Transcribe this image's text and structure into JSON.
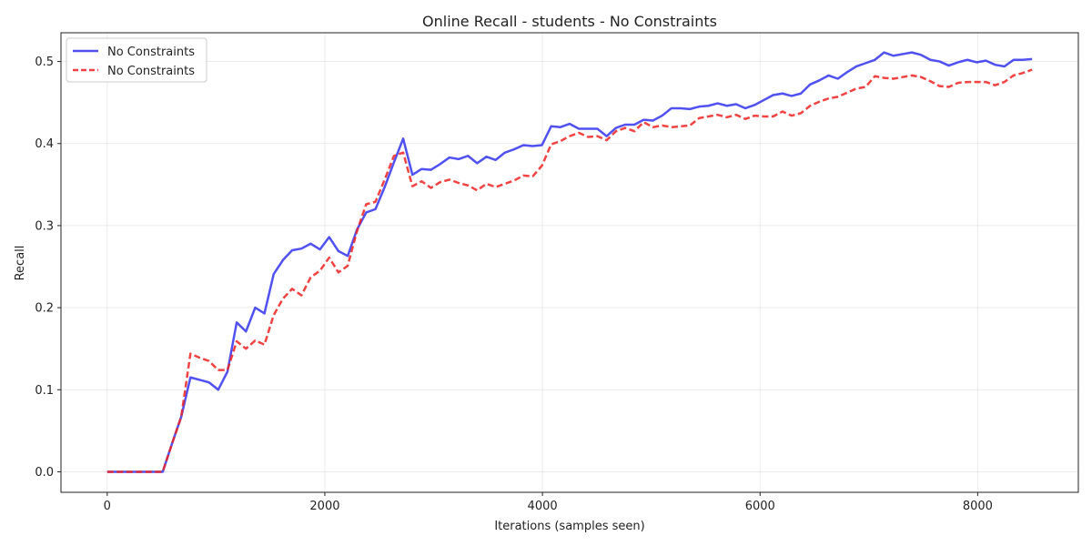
{
  "chart_data": {
    "type": "line",
    "title": "Online Recall - students - No Constraints",
    "xlabel": "Iterations (samples seen)",
    "ylabel": "Recall",
    "xlim": [
      -425,
      8925
    ],
    "ylim": [
      -0.025,
      0.535
    ],
    "xticks": [
      0,
      2000,
      4000,
      6000,
      8000
    ],
    "xtick_labels": [
      "0",
      "2000",
      "4000",
      "6000",
      "8000"
    ],
    "yticks": [
      0.0,
      0.1,
      0.2,
      0.3,
      0.4,
      0.5
    ],
    "ytick_labels": [
      "0.0",
      "0.1",
      "0.2",
      "0.3",
      "0.4",
      "0.5"
    ],
    "grid": true,
    "legend_position": "top-left",
    "series": [
      {
        "name": "No Constraints",
        "color": "#3333ee",
        "style": "solid",
        "points": [
          [
            0,
            0.0
          ],
          [
            85,
            0.0
          ],
          [
            170,
            0.0
          ],
          [
            255,
            0.0
          ],
          [
            340,
            0.0
          ],
          [
            425,
            0.0
          ],
          [
            510,
            0.0
          ],
          [
            595,
            0.034
          ],
          [
            680,
            0.067
          ],
          [
            765,
            0.115
          ],
          [
            850,
            0.112
          ],
          [
            935,
            0.109
          ],
          [
            1020,
            0.1
          ],
          [
            1105,
            0.122
          ],
          [
            1190,
            0.182
          ],
          [
            1275,
            0.171
          ],
          [
            1360,
            0.2
          ],
          [
            1445,
            0.193
          ],
          [
            1530,
            0.241
          ],
          [
            1615,
            0.258
          ],
          [
            1700,
            0.27
          ],
          [
            1785,
            0.272
          ],
          [
            1870,
            0.278
          ],
          [
            1955,
            0.271
          ],
          [
            2040,
            0.286
          ],
          [
            2125,
            0.269
          ],
          [
            2210,
            0.263
          ],
          [
            2295,
            0.295
          ],
          [
            2380,
            0.316
          ],
          [
            2465,
            0.32
          ],
          [
            2550,
            0.347
          ],
          [
            2635,
            0.377
          ],
          [
            2720,
            0.406
          ],
          [
            2805,
            0.362
          ],
          [
            2890,
            0.369
          ],
          [
            2975,
            0.368
          ],
          [
            3060,
            0.375
          ],
          [
            3145,
            0.383
          ],
          [
            3230,
            0.381
          ],
          [
            3315,
            0.385
          ],
          [
            3400,
            0.376
          ],
          [
            3485,
            0.384
          ],
          [
            3570,
            0.38
          ],
          [
            3655,
            0.389
          ],
          [
            3740,
            0.393
          ],
          [
            3825,
            0.398
          ],
          [
            3910,
            0.397
          ],
          [
            3995,
            0.398
          ],
          [
            4080,
            0.421
          ],
          [
            4165,
            0.42
          ],
          [
            4250,
            0.424
          ],
          [
            4335,
            0.418
          ],
          [
            4420,
            0.418
          ],
          [
            4505,
            0.418
          ],
          [
            4590,
            0.409
          ],
          [
            4675,
            0.419
          ],
          [
            4760,
            0.423
          ],
          [
            4845,
            0.423
          ],
          [
            4930,
            0.429
          ],
          [
            5015,
            0.428
          ],
          [
            5100,
            0.434
          ],
          [
            5185,
            0.443
          ],
          [
            5270,
            0.443
          ],
          [
            5355,
            0.442
          ],
          [
            5440,
            0.445
          ],
          [
            5525,
            0.446
          ],
          [
            5610,
            0.449
          ],
          [
            5695,
            0.446
          ],
          [
            5780,
            0.448
          ],
          [
            5865,
            0.443
          ],
          [
            5950,
            0.447
          ],
          [
            6035,
            0.453
          ],
          [
            6120,
            0.459
          ],
          [
            6205,
            0.461
          ],
          [
            6290,
            0.458
          ],
          [
            6375,
            0.461
          ],
          [
            6460,
            0.472
          ],
          [
            6545,
            0.477
          ],
          [
            6630,
            0.483
          ],
          [
            6715,
            0.479
          ],
          [
            6800,
            0.487
          ],
          [
            6885,
            0.494
          ],
          [
            6970,
            0.498
          ],
          [
            7055,
            0.502
          ],
          [
            7140,
            0.511
          ],
          [
            7225,
            0.507
          ],
          [
            7310,
            0.509
          ],
          [
            7395,
            0.511
          ],
          [
            7480,
            0.508
          ],
          [
            7565,
            0.502
          ],
          [
            7650,
            0.5
          ],
          [
            7735,
            0.495
          ],
          [
            7820,
            0.499
          ],
          [
            7905,
            0.502
          ],
          [
            7990,
            0.499
          ],
          [
            8075,
            0.501
          ],
          [
            8160,
            0.496
          ],
          [
            8245,
            0.494
          ],
          [
            8330,
            0.502
          ],
          [
            8415,
            0.502
          ],
          [
            8500,
            0.503
          ]
        ]
      },
      {
        "name": "No Constraints",
        "color": "#ee2222",
        "style": "dashed",
        "points": [
          [
            0,
            0.0
          ],
          [
            85,
            0.0
          ],
          [
            170,
            0.0
          ],
          [
            255,
            0.0
          ],
          [
            340,
            0.0
          ],
          [
            425,
            0.0
          ],
          [
            510,
            0.0
          ],
          [
            595,
            0.034
          ],
          [
            680,
            0.067
          ],
          [
            765,
            0.144
          ],
          [
            850,
            0.139
          ],
          [
            935,
            0.135
          ],
          [
            1020,
            0.124
          ],
          [
            1105,
            0.124
          ],
          [
            1190,
            0.159
          ],
          [
            1275,
            0.15
          ],
          [
            1360,
            0.16
          ],
          [
            1445,
            0.155
          ],
          [
            1530,
            0.191
          ],
          [
            1615,
            0.211
          ],
          [
            1700,
            0.223
          ],
          [
            1785,
            0.215
          ],
          [
            1870,
            0.237
          ],
          [
            1955,
            0.245
          ],
          [
            2040,
            0.261
          ],
          [
            2125,
            0.243
          ],
          [
            2210,
            0.251
          ],
          [
            2295,
            0.293
          ],
          [
            2380,
            0.326
          ],
          [
            2465,
            0.329
          ],
          [
            2550,
            0.356
          ],
          [
            2635,
            0.385
          ],
          [
            2720,
            0.389
          ],
          [
            2805,
            0.348
          ],
          [
            2890,
            0.354
          ],
          [
            2975,
            0.346
          ],
          [
            3060,
            0.353
          ],
          [
            3145,
            0.356
          ],
          [
            3230,
            0.352
          ],
          [
            3315,
            0.349
          ],
          [
            3400,
            0.343
          ],
          [
            3485,
            0.351
          ],
          [
            3570,
            0.347
          ],
          [
            3655,
            0.351
          ],
          [
            3740,
            0.355
          ],
          [
            3825,
            0.361
          ],
          [
            3910,
            0.36
          ],
          [
            3995,
            0.373
          ],
          [
            4080,
            0.399
          ],
          [
            4165,
            0.403
          ],
          [
            4250,
            0.409
          ],
          [
            4335,
            0.413
          ],
          [
            4420,
            0.408
          ],
          [
            4505,
            0.409
          ],
          [
            4590,
            0.404
          ],
          [
            4675,
            0.415
          ],
          [
            4760,
            0.419
          ],
          [
            4845,
            0.415
          ],
          [
            4930,
            0.426
          ],
          [
            5015,
            0.42
          ],
          [
            5100,
            0.422
          ],
          [
            5185,
            0.42
          ],
          [
            5270,
            0.421
          ],
          [
            5355,
            0.422
          ],
          [
            5440,
            0.431
          ],
          [
            5525,
            0.433
          ],
          [
            5610,
            0.435
          ],
          [
            5695,
            0.432
          ],
          [
            5780,
            0.435
          ],
          [
            5865,
            0.43
          ],
          [
            5950,
            0.434
          ],
          [
            6035,
            0.433
          ],
          [
            6120,
            0.433
          ],
          [
            6205,
            0.439
          ],
          [
            6290,
            0.434
          ],
          [
            6375,
            0.437
          ],
          [
            6460,
            0.446
          ],
          [
            6545,
            0.451
          ],
          [
            6630,
            0.455
          ],
          [
            6715,
            0.457
          ],
          [
            6800,
            0.462
          ],
          [
            6885,
            0.467
          ],
          [
            6970,
            0.469
          ],
          [
            7055,
            0.482
          ],
          [
            7140,
            0.48
          ],
          [
            7225,
            0.479
          ],
          [
            7310,
            0.481
          ],
          [
            7395,
            0.483
          ],
          [
            7480,
            0.481
          ],
          [
            7565,
            0.476
          ],
          [
            7650,
            0.47
          ],
          [
            7735,
            0.469
          ],
          [
            7820,
            0.474
          ],
          [
            7905,
            0.475
          ],
          [
            7990,
            0.475
          ],
          [
            8075,
            0.475
          ],
          [
            8160,
            0.471
          ],
          [
            8245,
            0.475
          ],
          [
            8330,
            0.483
          ],
          [
            8415,
            0.486
          ],
          [
            8500,
            0.49
          ]
        ]
      }
    ]
  }
}
